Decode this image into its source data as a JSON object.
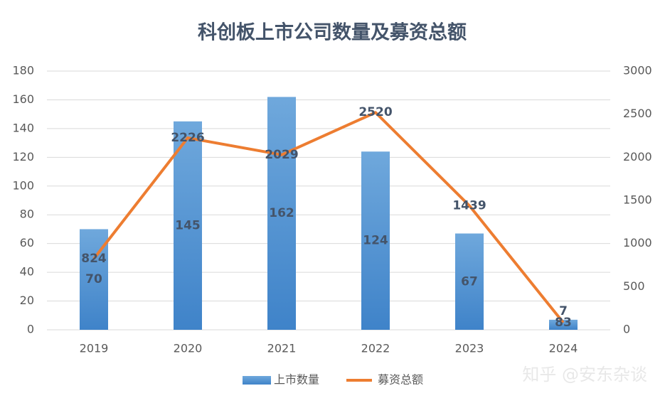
{
  "chart_data": {
    "type": "bar",
    "title": "科创板上市公司数量及募资总额",
    "categories": [
      "2019",
      "2020",
      "2021",
      "2022",
      "2023",
      "2024"
    ],
    "series": [
      {
        "name": "上市数量",
        "type": "bar",
        "color": "#5b9bd5",
        "values": [
          70,
          145,
          162,
          124,
          67,
          7
        ]
      },
      {
        "name": "募资总额",
        "type": "line",
        "axis": "y2",
        "color": "#ed7d31",
        "values": [
          824,
          2226,
          2029,
          2520,
          1439,
          83
        ]
      }
    ],
    "ylim": [
      0,
      180
    ],
    "yticks": [
      0,
      20,
      40,
      60,
      80,
      100,
      120,
      140,
      160,
      180
    ],
    "y2lim": [
      0,
      3000
    ],
    "y2ticks": [
      0,
      500,
      1000,
      1500,
      2000,
      2500,
      3000
    ],
    "grid": true,
    "legend": "bottom",
    "watermark": "知乎 @安东杂谈"
  }
}
